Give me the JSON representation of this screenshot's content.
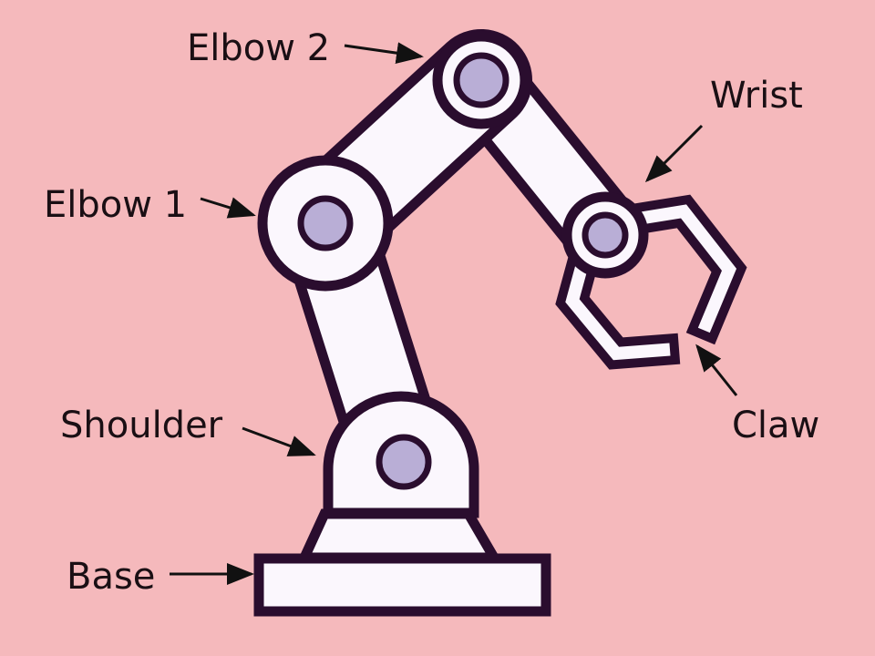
{
  "colors": {
    "background": "#f5b9bc",
    "outline": "#2a0d2e",
    "arm_fill": "#fbf7fd",
    "joint_fill": "#b9aed6",
    "arrow": "#111111",
    "text": "#1a0f14"
  },
  "labels": {
    "elbow2": "Elbow 2",
    "wrist": "Wrist",
    "elbow1": "Elbow 1",
    "shoulder": "Shoulder",
    "claw": "Claw",
    "base": "Base"
  }
}
